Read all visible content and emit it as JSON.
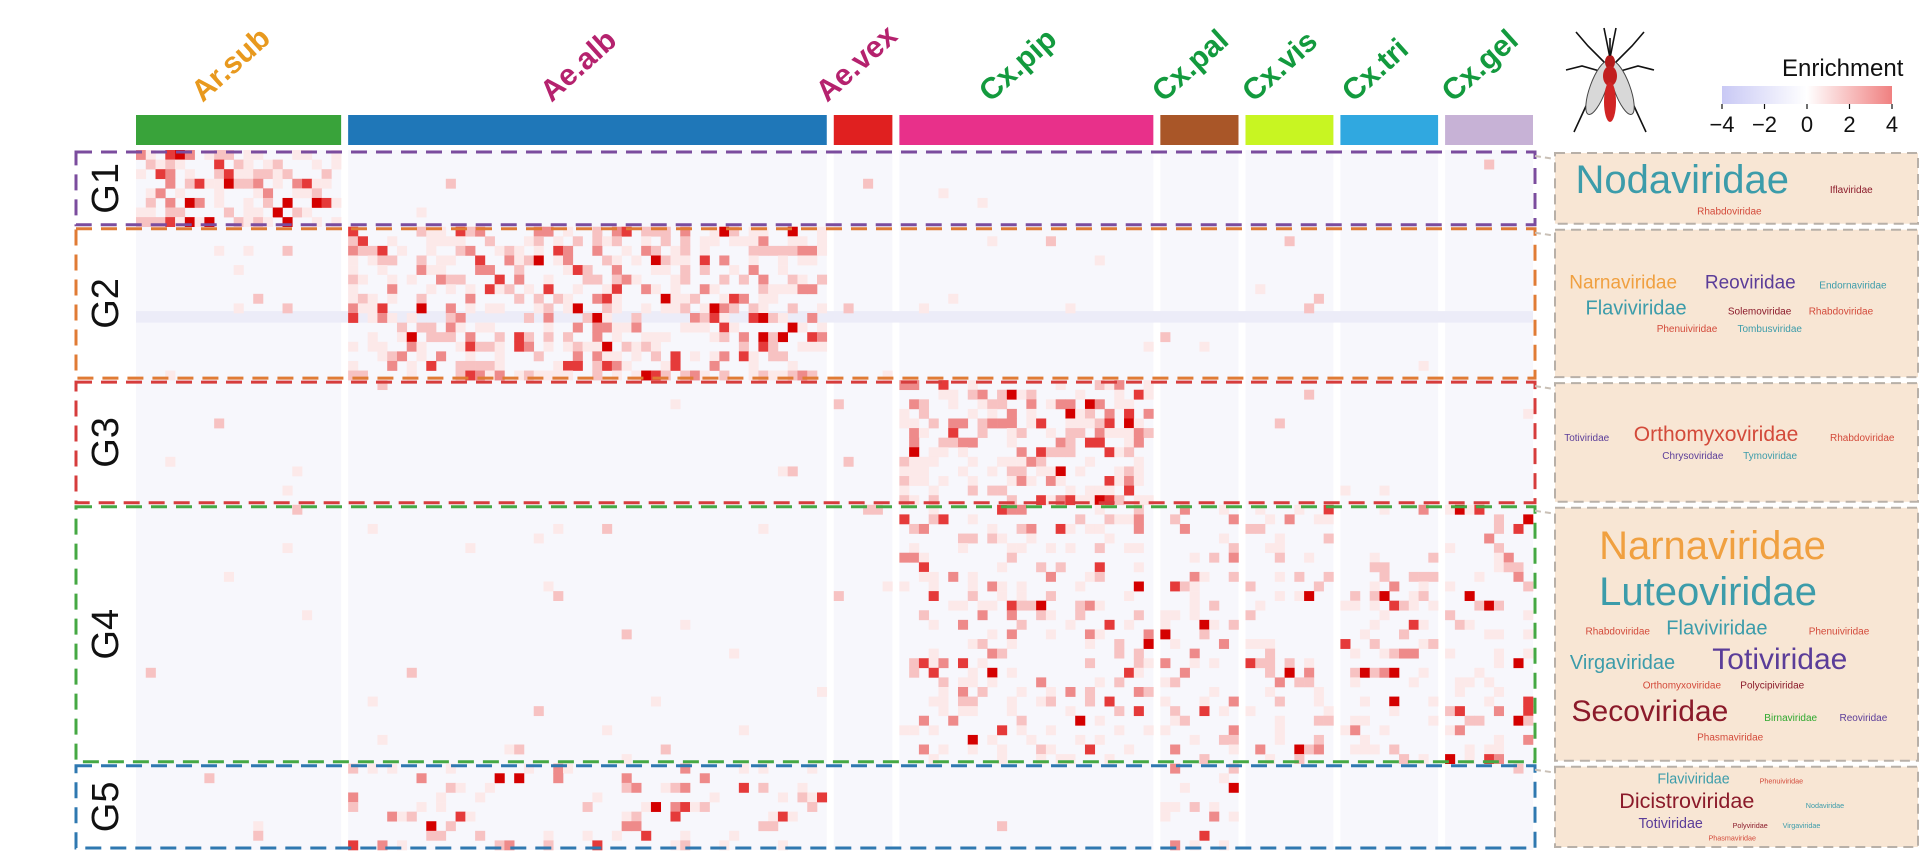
{
  "chart_data": {
    "type": "heatmap",
    "title": "",
    "legend": {
      "title": "Enrichment",
      "ticks": [
        "−4",
        "−2",
        "0",
        "2",
        "4"
      ],
      "range": [
        -4,
        4
      ],
      "colors": {
        "low": "#c9c9f5",
        "mid": "#ffffff",
        "high": "#f08080"
      },
      "placement": "top-right"
    },
    "cell_colors": {
      "background": "#f7f7fc",
      "faint": "#fce9e9",
      "light": "#f7c2c2",
      "medium": "#ee8a8a",
      "strong": "#e53a3a",
      "max": "#d40000",
      "negative": "#ececf8"
    },
    "species": [
      {
        "name": "Ar.sub",
        "color": "#39a33a",
        "label_color": "#e8991e",
        "cols": 21
      },
      {
        "name": "Ae.alb",
        "color": "#1f77b8",
        "label_color": "#b5226e",
        "cols": 49
      },
      {
        "name": "Ae.vex",
        "color": "#e02020",
        "label_color": "#b5226e",
        "cols": 6
      },
      {
        "name": "Cx.pip",
        "color": "#e8308a",
        "label_color": "#139a3e",
        "cols": 26
      },
      {
        "name": "Cx.pal",
        "color": "#a95628",
        "label_color": "#139a3e",
        "cols": 8
      },
      {
        "name": "Cx.vis",
        "color": "#c8f522",
        "label_color": "#139a3e",
        "cols": 9
      },
      {
        "name": "Cx.tri",
        "color": "#30a8e0",
        "label_color": "#139a3e",
        "cols": 10
      },
      {
        "name": "Cx.gel",
        "color": "#c7b2d6",
        "label_color": "#139a3e",
        "cols": 9
      }
    ],
    "groups": [
      {
        "name": "G1",
        "color": "#7b4c9e",
        "rows": 8,
        "hotspot_species": [
          "Ar.sub"
        ],
        "intensity": 0.55,
        "families": [
          {
            "text": "Nodaviridae",
            "color": "#3c9caa",
            "size": 40
          },
          {
            "text": "Iflaviridae",
            "color": "#8b1a2a",
            "size": 10
          },
          {
            "text": "Rhabdoviridae",
            "color": "#d34a3a",
            "size": 10
          }
        ]
      },
      {
        "name": "G2",
        "color": "#e07b35",
        "rows": 16,
        "hotspot_species": [
          "Ae.alb"
        ],
        "intensity": 0.5,
        "families": [
          {
            "text": "Narnaviridae",
            "color": "#f0a040",
            "size": 19
          },
          {
            "text": "Reoviridae",
            "color": "#5b3d99",
            "size": 19
          },
          {
            "text": "Endornaviridae",
            "color": "#3c9caa",
            "size": 10
          },
          {
            "text": "Flaviviridae",
            "color": "#3c9caa",
            "size": 20
          },
          {
            "text": "Solemoviridae",
            "color": "#8b1a2a",
            "size": 10
          },
          {
            "text": "Rhabdoviridae",
            "color": "#d34a3a",
            "size": 10
          },
          {
            "text": "Phenuiviridae",
            "color": "#d34a3a",
            "size": 10
          },
          {
            "text": "Tombusviridae",
            "color": "#3c9caa",
            "size": 10
          }
        ]
      },
      {
        "name": "G3",
        "color": "#d63c3c",
        "rows": 13,
        "hotspot_species": [
          "Cx.pip"
        ],
        "intensity": 0.55,
        "families": [
          {
            "text": "Totiviridae",
            "color": "#5b3d99",
            "size": 10
          },
          {
            "text": "Orthomyxoviridae",
            "color": "#d34a3a",
            "size": 21
          },
          {
            "text": "Rhabdoviridae",
            "color": "#d34a3a",
            "size": 10
          },
          {
            "text": "Chrysoviridae",
            "color": "#5b3d99",
            "size": 10
          },
          {
            "text": "Tymoviridae",
            "color": "#3c9caa",
            "size": 10
          }
        ]
      },
      {
        "name": "G4",
        "color": "#45a843",
        "rows": 27,
        "hotspot_species": [
          "Cx.pip",
          "Cx.pal",
          "Cx.vis",
          "Cx.tri",
          "Cx.gel"
        ],
        "intensity": 0.25,
        "families": [
          {
            "text": "Narnaviridae",
            "color": "#f0a040",
            "size": 40
          },
          {
            "text": "Luteoviridae",
            "color": "#3c9caa",
            "size": 40
          },
          {
            "text": "Rhabdoviridae",
            "color": "#d34a3a",
            "size": 10
          },
          {
            "text": "Flaviviridae",
            "color": "#3c9caa",
            "size": 20
          },
          {
            "text": "Phenuiviridae",
            "color": "#d34a3a",
            "size": 10
          },
          {
            "text": "Virgaviridae",
            "color": "#3c9caa",
            "size": 20
          },
          {
            "text": "Totiviridae",
            "color": "#5b3d99",
            "size": 30
          },
          {
            "text": "Orthomyxoviridae",
            "color": "#d34a3a",
            "size": 10
          },
          {
            "text": "Polycipiviridae",
            "color": "#8b1a2a",
            "size": 10
          },
          {
            "text": "Secoviridae",
            "color": "#8b1a2a",
            "size": 30
          },
          {
            "text": "Birnaviridae",
            "color": "#2ea82e",
            "size": 10
          },
          {
            "text": "Reoviridae",
            "color": "#5b3d99",
            "size": 10
          },
          {
            "text": "Phasmaviridae",
            "color": "#d34a3a",
            "size": 10
          }
        ]
      },
      {
        "name": "G5",
        "color": "#2f78b0",
        "rows": 9,
        "hotspot_species": [
          "Ae.alb",
          "Cx.pal"
        ],
        "intensity": 0.18,
        "families": [
          {
            "text": "Flaviviridae",
            "color": "#3c9caa",
            "size": 20
          },
          {
            "text": "Phenuiviridae",
            "color": "#d34a3a",
            "size": 10
          },
          {
            "text": "Dicistroviridae",
            "color": "#8b1a2a",
            "size": 30
          },
          {
            "text": "Nodaviridae",
            "color": "#3c9caa",
            "size": 10
          },
          {
            "text": "Totiviridae",
            "color": "#5b3d99",
            "size": 20
          },
          {
            "text": "Polyviridae",
            "color": "#8b1a2a",
            "size": 10
          },
          {
            "text": "Virgaviridae",
            "color": "#3c9caa",
            "size": 10
          },
          {
            "text": "Phasmaviridae",
            "color": "#d34a3a",
            "size": 10
          }
        ]
      }
    ],
    "icon": "mosquito-icon"
  }
}
